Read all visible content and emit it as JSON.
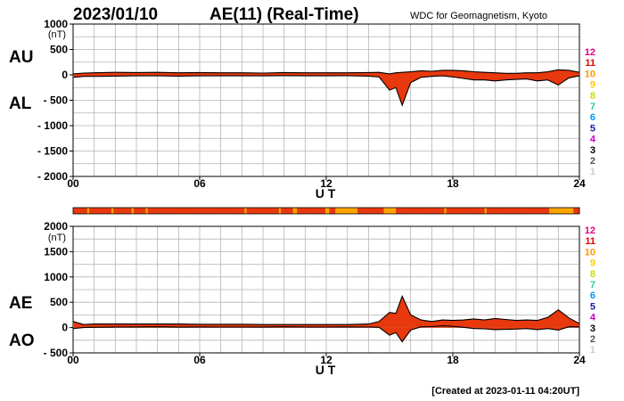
{
  "header": {
    "date": "2023/01/10",
    "title": "AE(11) (Real-Time)",
    "source": "WDC for Geomagnetism, Kyoto"
  },
  "footer": {
    "created": "[Created at 2023-01-11 04:20UT]"
  },
  "stations_legend": {
    "labels": [
      "12",
      "11",
      "10",
      "9",
      "8",
      "7",
      "6",
      "5",
      "4",
      "3",
      "2",
      "1"
    ],
    "colors": [
      "#e6007e",
      "#e60000",
      "#ff9900",
      "#ffcc00",
      "#ccdd00",
      "#33cc99",
      "#0099ff",
      "#1a1aaa",
      "#cc00cc",
      "#000000",
      "#555555",
      "#cccccc"
    ]
  },
  "chart_data": [
    {
      "type": "area",
      "name": "AU/AL",
      "labels_left": [
        "AU",
        "AL"
      ],
      "unit": "(nT)",
      "xlabel": "U T",
      "xticks": [
        "00",
        "06",
        "12",
        "18",
        "24"
      ],
      "xlim": [
        0,
        24
      ],
      "ylim": [
        -2000,
        1000
      ],
      "yticks": [
        "1000",
        "500",
        "0",
        "- 500",
        "- 1000",
        "- 1500",
        "- 2000"
      ],
      "ytick_values": [
        1000,
        500,
        0,
        -500,
        -1000,
        -1500,
        -2000
      ],
      "series": [
        {
          "name": "AU",
          "x": [
            0,
            0.5,
            1,
            2,
            3,
            4,
            5,
            6,
            7,
            8,
            9,
            10,
            11,
            12,
            13,
            14,
            14.5,
            15,
            15.3,
            15.6,
            16,
            16.5,
            17,
            17.5,
            18,
            18.5,
            19,
            19.5,
            20,
            20.5,
            21,
            21.5,
            22,
            22.5,
            23,
            23.5,
            24
          ],
          "values": [
            20,
            35,
            40,
            50,
            45,
            50,
            40,
            45,
            40,
            40,
            35,
            45,
            40,
            40,
            40,
            45,
            50,
            20,
            40,
            50,
            60,
            80,
            70,
            90,
            90,
            80,
            60,
            50,
            40,
            30,
            30,
            40,
            40,
            60,
            100,
            90,
            50
          ]
        },
        {
          "name": "AL",
          "x": [
            0,
            0.5,
            1,
            2,
            3,
            4,
            5,
            6,
            7,
            8,
            9,
            10,
            11,
            12,
            13,
            14,
            14.5,
            15,
            15.3,
            15.6,
            16,
            16.5,
            17,
            17.5,
            18,
            18.5,
            19,
            19.5,
            20,
            20.5,
            21,
            21.5,
            22,
            22.5,
            23,
            23.5,
            24
          ],
          "values": [
            -50,
            -30,
            -30,
            -25,
            -20,
            -20,
            -25,
            -20,
            -20,
            -20,
            -20,
            -15,
            -20,
            -20,
            -15,
            -25,
            -40,
            -300,
            -250,
            -600,
            -150,
            -50,
            -30,
            -20,
            -40,
            -70,
            -100,
            -100,
            -120,
            -100,
            -90,
            -80,
            -120,
            -100,
            -200,
            -60,
            -20
          ]
        }
      ]
    },
    {
      "type": "area",
      "name": "AE/AO",
      "labels_left": [
        "AE",
        "AO"
      ],
      "unit": "(nT)",
      "xlabel": "U T",
      "xticks": [
        "00",
        "06",
        "12",
        "18",
        "24"
      ],
      "xlim": [
        0,
        24
      ],
      "ylim": [
        -500,
        2000
      ],
      "yticks": [
        "2000",
        "1500",
        "1000",
        "500",
        "0",
        "- 500"
      ],
      "ytick_values": [
        2000,
        1500,
        1000,
        500,
        0,
        -500
      ],
      "series": [
        {
          "name": "AE",
          "x": [
            0,
            0.5,
            1,
            2,
            3,
            4,
            5,
            6,
            7,
            8,
            9,
            10,
            11,
            12,
            13,
            14,
            14.5,
            15,
            15.3,
            15.6,
            16,
            16.5,
            17,
            17.5,
            18,
            18.5,
            19,
            19.5,
            20,
            20.5,
            21,
            21.5,
            22,
            22.5,
            23,
            23.5,
            24
          ],
          "values": [
            120,
            60,
            70,
            70,
            70,
            70,
            70,
            65,
            65,
            65,
            60,
            60,
            60,
            60,
            60,
            70,
            120,
            300,
            280,
            620,
            250,
            150,
            120,
            150,
            140,
            150,
            170,
            150,
            180,
            160,
            140,
            150,
            140,
            200,
            350,
            190,
            80
          ]
        },
        {
          "name": "AO",
          "x": [
            0,
            0.5,
            1,
            2,
            3,
            4,
            5,
            6,
            7,
            8,
            9,
            10,
            11,
            12,
            13,
            14,
            14.5,
            15,
            15.3,
            15.6,
            16,
            16.5,
            17,
            17.5,
            18,
            18.5,
            19,
            19.5,
            20,
            20.5,
            21,
            21.5,
            22,
            22.5,
            23,
            23.5,
            24
          ],
          "values": [
            -20,
            0,
            5,
            10,
            12,
            15,
            8,
            12,
            10,
            10,
            8,
            15,
            10,
            10,
            12,
            10,
            5,
            -150,
            -100,
            -280,
            -50,
            15,
            20,
            35,
            25,
            5,
            -20,
            -25,
            -40,
            -35,
            -30,
            -20,
            -40,
            -20,
            -50,
            15,
            15
          ]
        }
      ]
    }
  ],
  "station_bar": {
    "name": "station count per interval",
    "values": [
      11,
      11,
      11,
      11,
      11,
      11,
      11,
      10,
      11,
      11,
      11,
      11,
      11,
      11,
      11,
      11,
      11,
      11,
      11,
      10,
      11,
      11,
      11,
      11,
      11,
      11,
      11,
      11,
      11,
      10,
      11,
      11,
      11,
      11,
      11,
      11,
      10,
      11,
      11,
      11,
      11,
      11,
      11,
      11,
      11,
      11,
      11,
      11,
      11,
      11,
      11,
      11,
      11,
      11,
      11,
      11,
      11,
      11,
      11,
      11,
      11,
      11,
      11,
      11,
      11,
      11,
      11,
      11,
      11,
      11,
      11,
      11,
      11,
      11,
      11,
      11,
      11,
      11,
      11,
      11,
      11,
      11,
      11,
      11,
      11,
      10,
      11,
      11,
      11,
      11,
      11,
      11,
      11,
      11,
      11,
      11,
      11,
      11,
      11,
      11,
      11,
      11,
      10,
      11,
      11,
      11,
      11,
      11,
      11,
      10,
      10,
      11,
      11,
      11,
      11,
      11,
      11,
      11,
      11,
      11,
      11,
      11,
      11,
      11,
      11,
      10,
      10,
      11,
      11,
      11,
      10,
      10,
      10,
      10,
      10,
      10,
      10,
      10,
      10,
      10,
      10,
      11,
      11,
      11,
      11,
      11,
      11,
      11,
      11,
      11,
      11,
      11,
      11,
      11,
      10,
      10,
      10,
      10,
      10,
      10,
      11,
      11,
      11,
      11,
      11,
      11,
      11,
      11,
      11,
      11,
      11,
      11,
      11,
      11,
      11,
      11,
      11,
      11,
      11,
      11,
      11,
      11,
      11,
      11,
      10,
      11,
      11,
      11,
      11,
      11,
      11,
      11,
      11,
      11,
      11,
      11,
      11,
      11,
      11,
      11,
      11,
      11,
      11,
      11,
      10,
      11,
      11,
      11,
      11,
      11,
      11,
      11,
      11,
      11,
      11,
      11,
      11,
      11,
      11,
      11,
      11,
      11,
      11,
      11,
      11,
      11,
      11,
      11,
      11,
      11,
      11,
      11,
      11,
      11,
      11,
      11,
      10,
      10,
      10,
      10,
      10,
      10,
      10,
      10,
      10,
      10,
      10,
      10,
      11,
      11,
      11
    ]
  }
}
